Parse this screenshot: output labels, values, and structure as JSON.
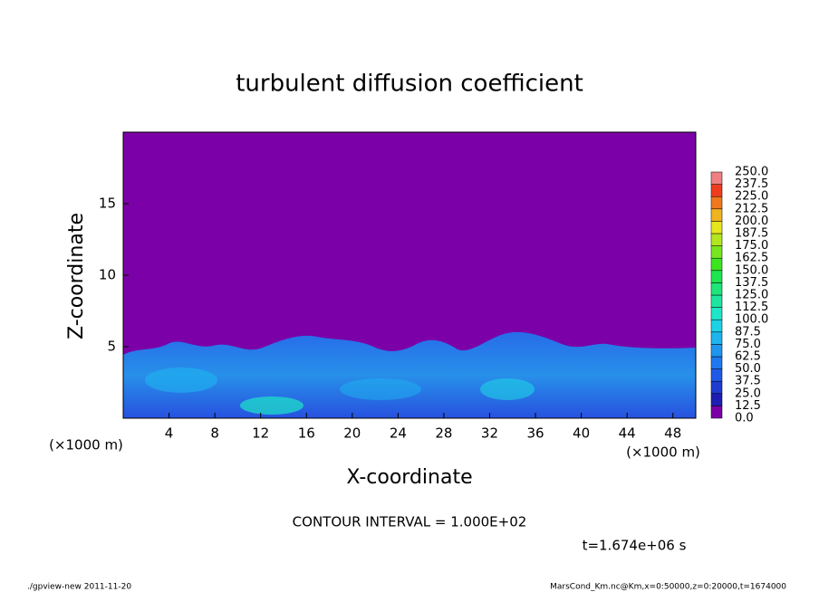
{
  "chart_data": {
    "type": "contour",
    "title": "turbulent diffusion coefficient",
    "x_label": "X-coordinate",
    "y_label": "Z-coordinate",
    "x_unit": "(×1000 m)",
    "xlim": [
      0,
      50
    ],
    "xticks": [
      4,
      8,
      12,
      16,
      20,
      24,
      28,
      32,
      36,
      40,
      44,
      48
    ],
    "ylim": [
      0,
      20
    ],
    "yticks": [
      5,
      10,
      15
    ],
    "colorbar": {
      "levels": [
        {
          "value": 0,
          "label": "0.0"
        },
        12.5,
        {
          "value": 25,
          "label": "25.0"
        },
        37.5,
        {
          "value": 50,
          "label": "50.0"
        },
        62.5,
        {
          "value": 75,
          "label": "75.0"
        },
        87.5,
        {
          "value": 100,
          "label": "100.0"
        },
        112.5,
        {
          "value": 125,
          "label": "125.0"
        },
        137.5,
        {
          "value": 150,
          "label": "150.0"
        },
        162.5,
        {
          "value": 175,
          "label": "175.0"
        },
        187.5,
        {
          "value": 200,
          "label": "200.0"
        },
        212.5,
        {
          "value": 225,
          "label": "225.0"
        },
        237.5,
        {
          "value": 250,
          "label": "250.0"
        }
      ],
      "colors": [
        "#7b00a8",
        "#1e1eb4",
        "#1e3cd2",
        "#1e5ae6",
        "#1e78f0",
        "#1e96f0",
        "#1eb4f0",
        "#1ed2e6",
        "#1ee6c8",
        "#1ee6a0",
        "#1ee678",
        "#1ee650",
        "#3ce61e",
        "#78e61e",
        "#b4e61e",
        "#e6e61e",
        "#f0b41e",
        "#f0781e",
        "#f03c1e",
        "#f08080"
      ]
    },
    "contour_interval": "CONTOUR INTERVAL = 1.000E+02",
    "time": "t=1.674e+06 s",
    "footer_left": "./gpview-new  2011-11-20",
    "footer_right": "MarsCond_Km.nc@Km,x=0:50000,z=0:20000,t=1674000"
  }
}
